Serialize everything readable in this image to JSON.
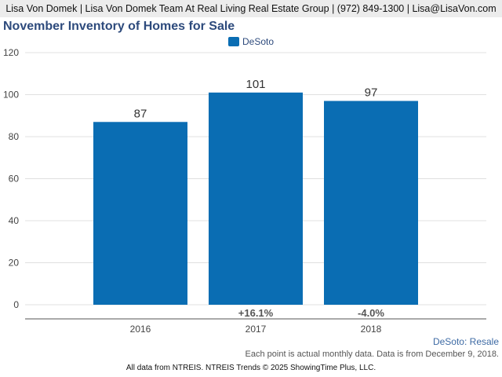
{
  "header": {
    "text": "Lisa Von Domek | Lisa Von Domek Team At Real Living Real Estate Group | (972) 849-1300 | Lisa@LisaVon.com"
  },
  "chart_data": {
    "type": "bar",
    "title": "November Inventory of Homes for Sale",
    "categories": [
      "2016",
      "2017",
      "2018"
    ],
    "series": [
      {
        "name": "DeSoto",
        "values": [
          87,
          101,
          97
        ],
        "color": "#0a6db3"
      }
    ],
    "data_labels": [
      "87",
      "101",
      "97"
    ],
    "change_labels": [
      "",
      "+16.1%",
      "-4.0%"
    ],
    "yticks": [
      "0",
      "20",
      "40",
      "60",
      "80",
      "100",
      "120"
    ],
    "ylim": [
      0,
      120
    ],
    "grid": true,
    "legend_position": "top-center",
    "xlabel": "",
    "ylabel": ""
  },
  "legend": {
    "label": "DeSoto"
  },
  "subtitle_right": "DeSoto: Resale",
  "footnote": "Each point is actual monthly data. Data is from December 9, 2018.",
  "credit": "All data from NTREIS. NTREIS Trends © 2025 ShowingTime Plus, LLC."
}
